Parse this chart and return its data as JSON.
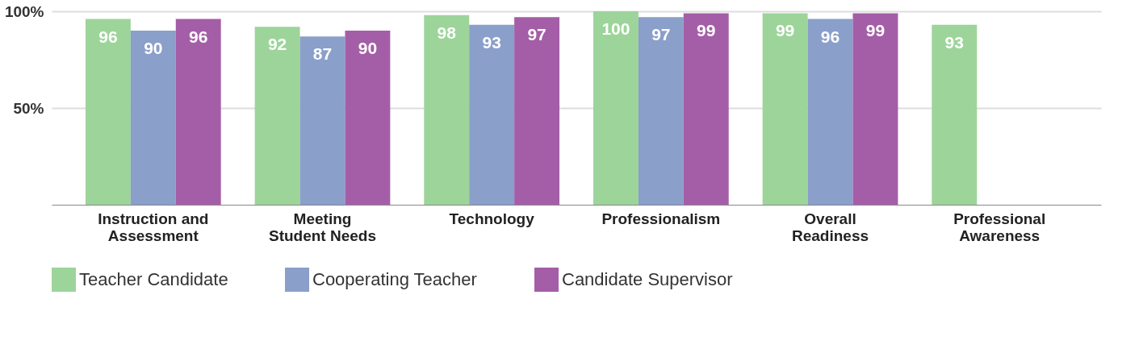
{
  "chart_data": {
    "type": "bar",
    "categories": [
      "Instruction and\nAssessment",
      "Meeting\nStudent Needs",
      "Technology",
      "Professionalism",
      "Overall\nReadiness",
      "Professional\nAwareness"
    ],
    "series": [
      {
        "name": "Teacher Candidate",
        "color": "#9dd49a",
        "values": [
          96,
          92,
          98,
          100,
          99,
          93
        ]
      },
      {
        "name": "Cooperating Teacher",
        "color": "#8a9fc9",
        "values": [
          90,
          87,
          93,
          97,
          96,
          null
        ]
      },
      {
        "name": "Candidate Supervisor",
        "color": "#a45ea7",
        "values": [
          96,
          90,
          97,
          99,
          99,
          null
        ]
      }
    ],
    "ylim": [
      0,
      100
    ],
    "yticks": [
      {
        "value": 50,
        "label": "50%"
      },
      {
        "value": 100,
        "label": "100%"
      }
    ],
    "grid": "y",
    "legend": "bottom",
    "data_labels": true
  }
}
